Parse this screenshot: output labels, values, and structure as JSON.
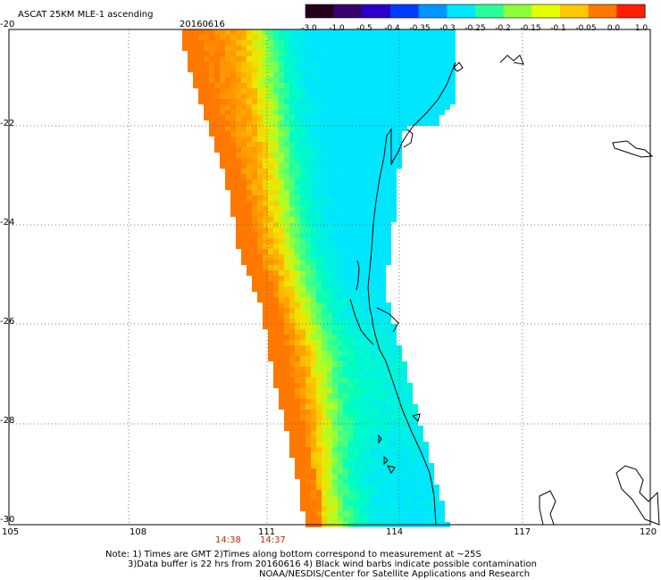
{
  "header": {
    "title": "ASCAT 25KM MLE-1 ascending",
    "date": "20160616"
  },
  "colorbar": {
    "colors": [
      "#24001e",
      "#3a0070",
      "#2b00c8",
      "#003cff",
      "#0096ff",
      "#00e6ff",
      "#28ff9a",
      "#8cff3c",
      "#e6ff00",
      "#ffc800",
      "#ff7800",
      "#ff1e00"
    ],
    "labels": [
      "-3.0",
      "-1.0",
      "-0.5",
      "-0.4",
      "-0.35",
      "-0.3",
      "-0.25",
      "-0.2",
      "-0.15",
      "-0.1",
      "-0.05",
      "0.0",
      "1.0"
    ]
  },
  "axes": {
    "lat_labels": [
      "-20",
      "-22",
      "-24",
      "-26",
      "-28",
      "-30"
    ],
    "lon_labels": [
      "105",
      "108",
      "111",
      "114",
      "117",
      "120"
    ]
  },
  "times": [
    "14:38",
    "14:37"
  ],
  "notes": {
    "line1": "Note: 1) Times are GMT 2)Times along bottom correspond to measurement at ~25S",
    "line2": "3)Data buffer is 22 hrs from 20160616 4) Black wind barbs indicate possible contamination",
    "line3": "NOAA/NESDIS/Center for Satellite Applications and Research"
  },
  "style": {
    "time_color": "#cc2200",
    "grid_color": "#555555"
  }
}
